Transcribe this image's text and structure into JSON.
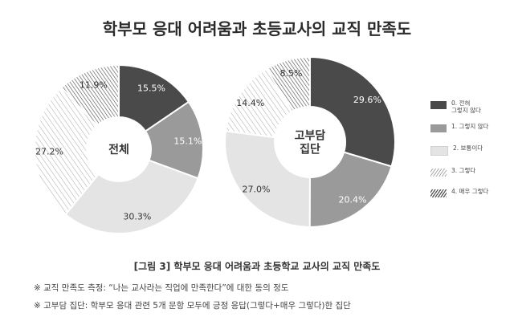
{
  "title": "학부모 응대 어려움과 초등교사의 교직 만족도",
  "legend": {
    "items": [
      {
        "label": "0. 전혀\n그렇지 않다",
        "color": "#4a4a4a",
        "pattern": "solid"
      },
      {
        "label": "1. 그렇지 않다",
        "color": "#9a9a9a",
        "pattern": "solid"
      },
      {
        "label": "2. 보통이다",
        "color": "#e4e4e4",
        "pattern": "solid"
      },
      {
        "label": "3. 그렇다",
        "color": "#ffffff",
        "pattern": "hatch-light"
      },
      {
        "label": "4. 매우 그렇다",
        "color": "#ffffff",
        "pattern": "hatch-dark"
      }
    ]
  },
  "chart_data": [
    {
      "type": "pie",
      "center_label": "전체",
      "categories": [
        "0. 전혀 그렇지 않다",
        "1. 그렇지 않다",
        "2. 보통이다",
        "3. 그렇다",
        "4. 매우 그렇다"
      ],
      "values": [
        15.5,
        15.1,
        30.3,
        27.2,
        11.9
      ],
      "value_labels": [
        "15.5%",
        "15.1%",
        "30.3%",
        "27.2%",
        "11.9%"
      ]
    },
    {
      "type": "pie",
      "center_label": "고부담\n집단",
      "categories": [
        "0. 전혀 그렇지 않다",
        "1. 그렇지 않다",
        "2. 보통이다",
        "3. 그렇다",
        "4. 매우 그렇다"
      ],
      "values": [
        29.6,
        20.4,
        27.0,
        14.4,
        8.5
      ],
      "value_labels": [
        "29.6%",
        "20.4%",
        "27.0%",
        "14.4%",
        "8.5%"
      ]
    }
  ],
  "caption": "[그림 3] 학부모 응대 어려움과 초등학교 교사의 교직 만족도",
  "notes": [
    "※ 교직 만족도 측정: “나는 교사라는 직업에 만족한다”에 대한 동의 정도",
    "※ 고부담 집단: 학부모 응대 관련 5개 문항 모두에 긍정 응답(그렇다+매우 그렇다)한 집단"
  ]
}
